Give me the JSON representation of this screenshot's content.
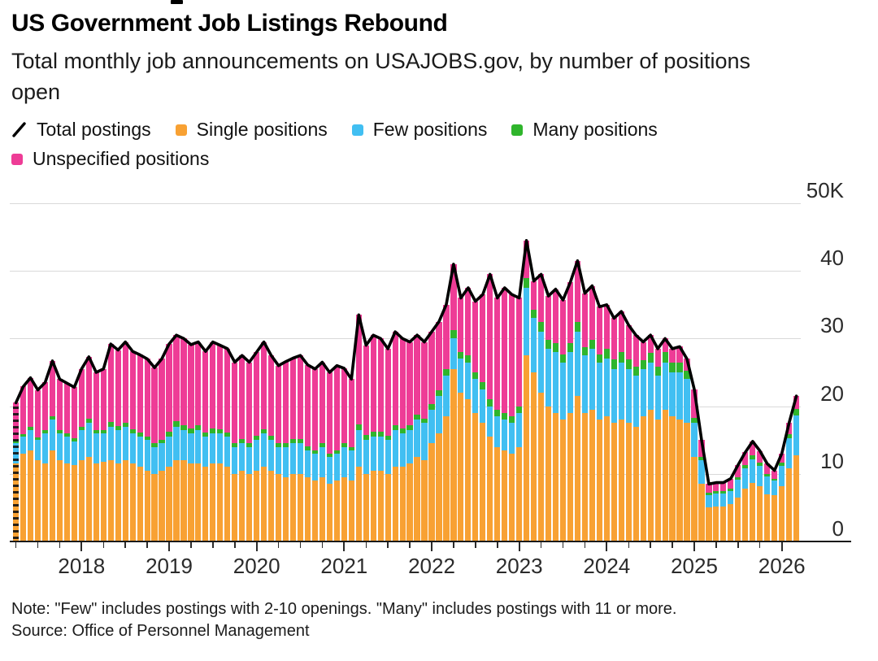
{
  "title": "US Government Job Listings Rebound",
  "subtitle": "Total monthly job announcements on USAJOBS.gov, by number of positions open",
  "note": "Note: \"Few\" includes postings with 2-10 openings. \"Many\" includes postings with 11 or more.",
  "source": "Source: Office of Personnel Management",
  "legend": {
    "items": [
      {
        "label": "Total postings",
        "type": "line",
        "color": "#000000"
      },
      {
        "label": "Single positions",
        "type": "box",
        "color": "#F8A133"
      },
      {
        "label": "Few positions",
        "type": "box",
        "color": "#41BFF2"
      },
      {
        "label": "Many positions",
        "type": "box",
        "color": "#2FB52C"
      },
      {
        "label": "Unspecified positions",
        "type": "box",
        "color": "#EE3C96"
      }
    ]
  },
  "colors": {
    "single": "#F8A133",
    "few": "#41BFF2",
    "many": "#2FB52C",
    "unspecified": "#EE3C96",
    "total_line": "#000000",
    "gridline": "#d9d9d9",
    "axis_baseline": "#1a1a1a",
    "axis_text": "#2b2b2b"
  },
  "chart_data": {
    "type": "bar",
    "subtype": "stacked-monthly-bars-with-total-line",
    "unit": "thousands of job postings",
    "x_start_month": "2017-04",
    "x_end_month": "2026-03",
    "ylim": [
      0,
      50
    ],
    "y_tick_values": [
      0,
      10,
      20,
      30,
      40,
      50
    ],
    "y_tick_labels": [
      "0",
      "10",
      "20",
      "30",
      "40",
      "50K"
    ],
    "x_year_labels": [
      "2018",
      "2019",
      "2020",
      "2021",
      "2022",
      "2023",
      "2024",
      "2025",
      "2026"
    ],
    "grid": "horizontal",
    "legend_position": "top",
    "line_series": {
      "name": "Total postings",
      "definition": "sum of stacked series"
    },
    "series": [
      {
        "name": "Single positions",
        "color": "#F8A133",
        "values": [
          11.5,
          13,
          13.5,
          12,
          11.5,
          13.5,
          12,
          11.5,
          11.3,
          12,
          12.5,
          11.5,
          11.8,
          12,
          11.5,
          12,
          11.5,
          11,
          10.5,
          10,
          10.5,
          11,
          12,
          12,
          11.5,
          11.5,
          11,
          11.5,
          11.5,
          11,
          10,
          10.5,
          10,
          10.5,
          11,
          10.5,
          10,
          9.5,
          10,
          10,
          9.5,
          9,
          9.5,
          8.5,
          9,
          9.5,
          9,
          11,
          10,
          10.5,
          10.5,
          10,
          11,
          11,
          11.5,
          12.5,
          12,
          14.5,
          16,
          18.5,
          25.5,
          22,
          21,
          19,
          17.5,
          15.5,
          14,
          13.5,
          13,
          14,
          27.5,
          25,
          22,
          20,
          19,
          18,
          19,
          21.5,
          19,
          19.5,
          18,
          18.5,
          17.5,
          18,
          17.5,
          17,
          18.5,
          19.5,
          18,
          19.5,
          18.5,
          18,
          17.5,
          12.5,
          8.5,
          5,
          5.2,
          5.2,
          5.5,
          6.5,
          7.8,
          8.7,
          8.2,
          7,
          6.8,
          8.2,
          10.8,
          12.8
        ]
      },
      {
        "name": "Few positions",
        "color": "#41BFF2",
        "values": [
          3,
          2.5,
          3,
          3,
          4.5,
          4.5,
          4,
          4,
          3.5,
          4.5,
          5,
          4.5,
          4.2,
          5,
          5,
          5,
          4.5,
          4.5,
          4.5,
          4,
          4,
          4.5,
          5,
          4.5,
          4.5,
          5,
          4.5,
          4.5,
          4.5,
          4.5,
          4,
          4,
          4,
          4.5,
          5,
          4.5,
          4,
          4.5,
          4.5,
          4.5,
          4,
          4,
          4.5,
          4,
          4,
          4.5,
          4.5,
          5.5,
          5,
          5,
          5,
          5,
          5.5,
          5,
          5,
          5.5,
          5.5,
          5,
          5.5,
          6,
          4.5,
          5,
          5.5,
          5,
          5,
          4.5,
          4.5,
          4.5,
          4.5,
          5,
          10,
          8,
          9,
          8.5,
          9,
          8.5,
          9,
          9.5,
          8.5,
          9,
          8.5,
          8.5,
          8,
          8.5,
          8,
          7.5,
          7,
          7,
          6.5,
          7,
          6.5,
          7,
          6.5,
          5,
          3.5,
          1.8,
          1.9,
          1.9,
          2,
          2.6,
          3,
          3.4,
          3,
          2.6,
          2.2,
          3,
          4.5,
          5.8
        ]
      },
      {
        "name": "Many positions",
        "color": "#2FB52C",
        "values": [
          0.5,
          0.4,
          0.4,
          0.4,
          0.5,
          0.5,
          0.5,
          0.5,
          0.5,
          0.5,
          0.6,
          0.5,
          0.5,
          0.7,
          0.6,
          0.6,
          0.6,
          0.6,
          0.5,
          0.5,
          0.5,
          0.7,
          0.8,
          0.7,
          0.7,
          0.7,
          0.6,
          0.7,
          0.6,
          0.6,
          0.5,
          0.6,
          0.5,
          0.6,
          0.6,
          0.6,
          0.5,
          0.6,
          0.6,
          0.6,
          0.6,
          0.5,
          0.5,
          0.5,
          0.5,
          0.6,
          0.5,
          0.8,
          0.7,
          0.7,
          0.7,
          0.6,
          0.7,
          0.7,
          0.7,
          0.8,
          0.7,
          0.8,
          0.9,
          1,
          1.2,
          1,
          1,
          1,
          1,
          1,
          1,
          1,
          1,
          1,
          1.5,
          1.3,
          1.5,
          1.3,
          1.3,
          1.2,
          1.3,
          1.5,
          1.2,
          1.3,
          1.2,
          1.5,
          1.4,
          1.5,
          1.4,
          1.3,
          1.3,
          1.4,
          1.3,
          1.5,
          1.5,
          1.4,
          1.2,
          0.8,
          0.5,
          0.4,
          0.3,
          0.3,
          0.3,
          0.4,
          0.5,
          0.6,
          0.5,
          0.4,
          0.3,
          0.4,
          0.6,
          1
        ]
      },
      {
        "name": "Unspecified positions",
        "color": "#EE3C96",
        "values": [
          5.5,
          7,
          7.3,
          7,
          7,
          8.2,
          7.5,
          7.4,
          7.5,
          8.5,
          9.2,
          8.5,
          9,
          11.5,
          11.2,
          11.9,
          11.5,
          11.5,
          11.5,
          11.2,
          12,
          13,
          12.7,
          12.8,
          12.4,
          12.3,
          12,
          12.8,
          12.4,
          12.4,
          12,
          12.4,
          12,
          12.4,
          12.9,
          11.9,
          11.5,
          12,
          12,
          12.4,
          12,
          12,
          12,
          12,
          12.5,
          11,
          10,
          16.2,
          13.3,
          14.3,
          13.8,
          12.9,
          13.8,
          13.3,
          12.3,
          11.7,
          11.3,
          10.7,
          10.1,
          9.5,
          9.8,
          8,
          10,
          10.5,
          13,
          18.5,
          16.5,
          18.5,
          18,
          16,
          5.5,
          4.2,
          7,
          6.5,
          8,
          8,
          9,
          9,
          8,
          8,
          7,
          6.5,
          6.1,
          6,
          5.1,
          4.7,
          2.7,
          2.6,
          2.7,
          2,
          2,
          2.4,
          1.8,
          4.2,
          2.5,
          1.3,
          1.3,
          1.3,
          1.5,
          1.8,
          1.9,
          2.1,
          1.7,
          1.5,
          1.2,
          1.4,
          1.6,
          1.9
        ]
      }
    ]
  }
}
